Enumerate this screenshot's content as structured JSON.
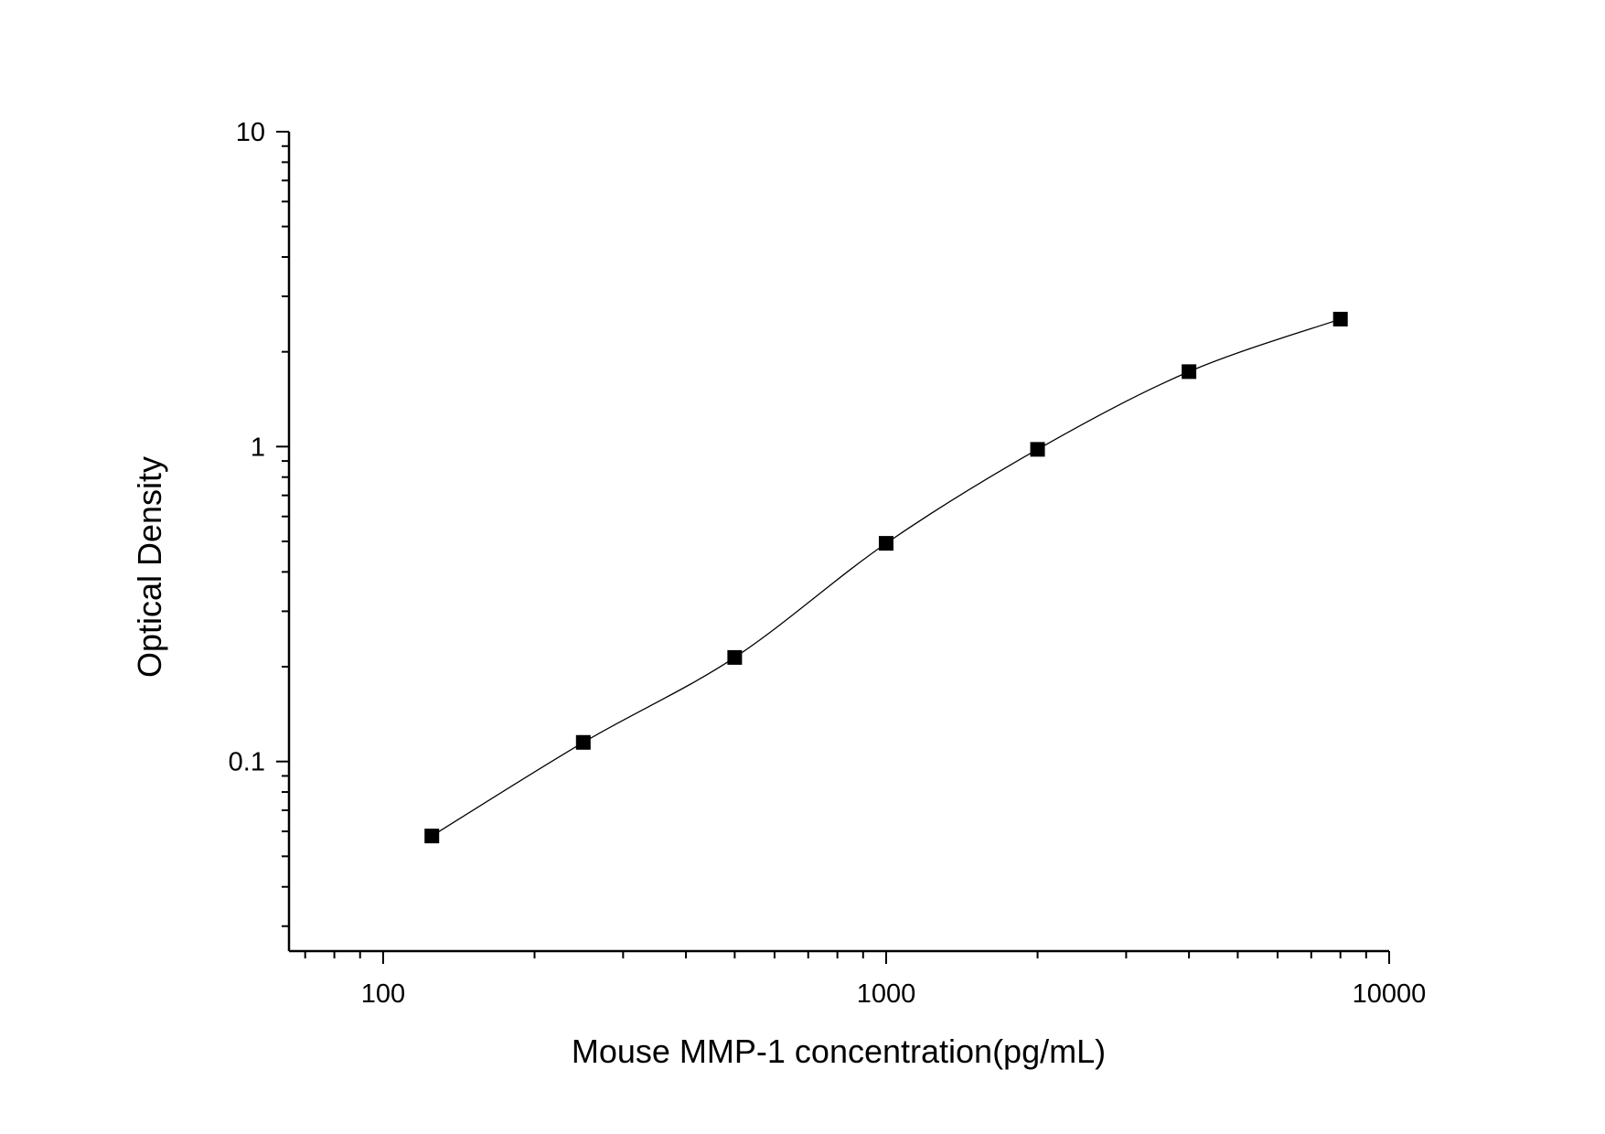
{
  "chart_data": {
    "type": "scatter",
    "title": "",
    "xlabel": "Mouse MMP-1 concentration(pg/mL)",
    "ylabel": "Optical Density",
    "x_scale": "log",
    "y_scale": "log",
    "xlim": [
      65,
      10000
    ],
    "ylim": [
      0.025,
      10
    ],
    "x_ticks": [
      {
        "value": 100,
        "label": "100"
      },
      {
        "value": 1000,
        "label": "1000"
      },
      {
        "value": 10000,
        "label": "10000"
      }
    ],
    "y_ticks": [
      {
        "value": 0.1,
        "label": "0.1"
      },
      {
        "value": 1,
        "label": "1"
      },
      {
        "value": 10,
        "label": "10"
      }
    ],
    "grid": false,
    "marker": "square",
    "fit_line": true,
    "color": "#000000",
    "series": [
      {
        "x": [
          125,
          250,
          500,
          1000,
          2000,
          4000,
          8000
        ],
        "y": [
          0.058,
          0.115,
          0.214,
          0.493,
          0.98,
          1.73,
          2.54
        ]
      }
    ]
  }
}
